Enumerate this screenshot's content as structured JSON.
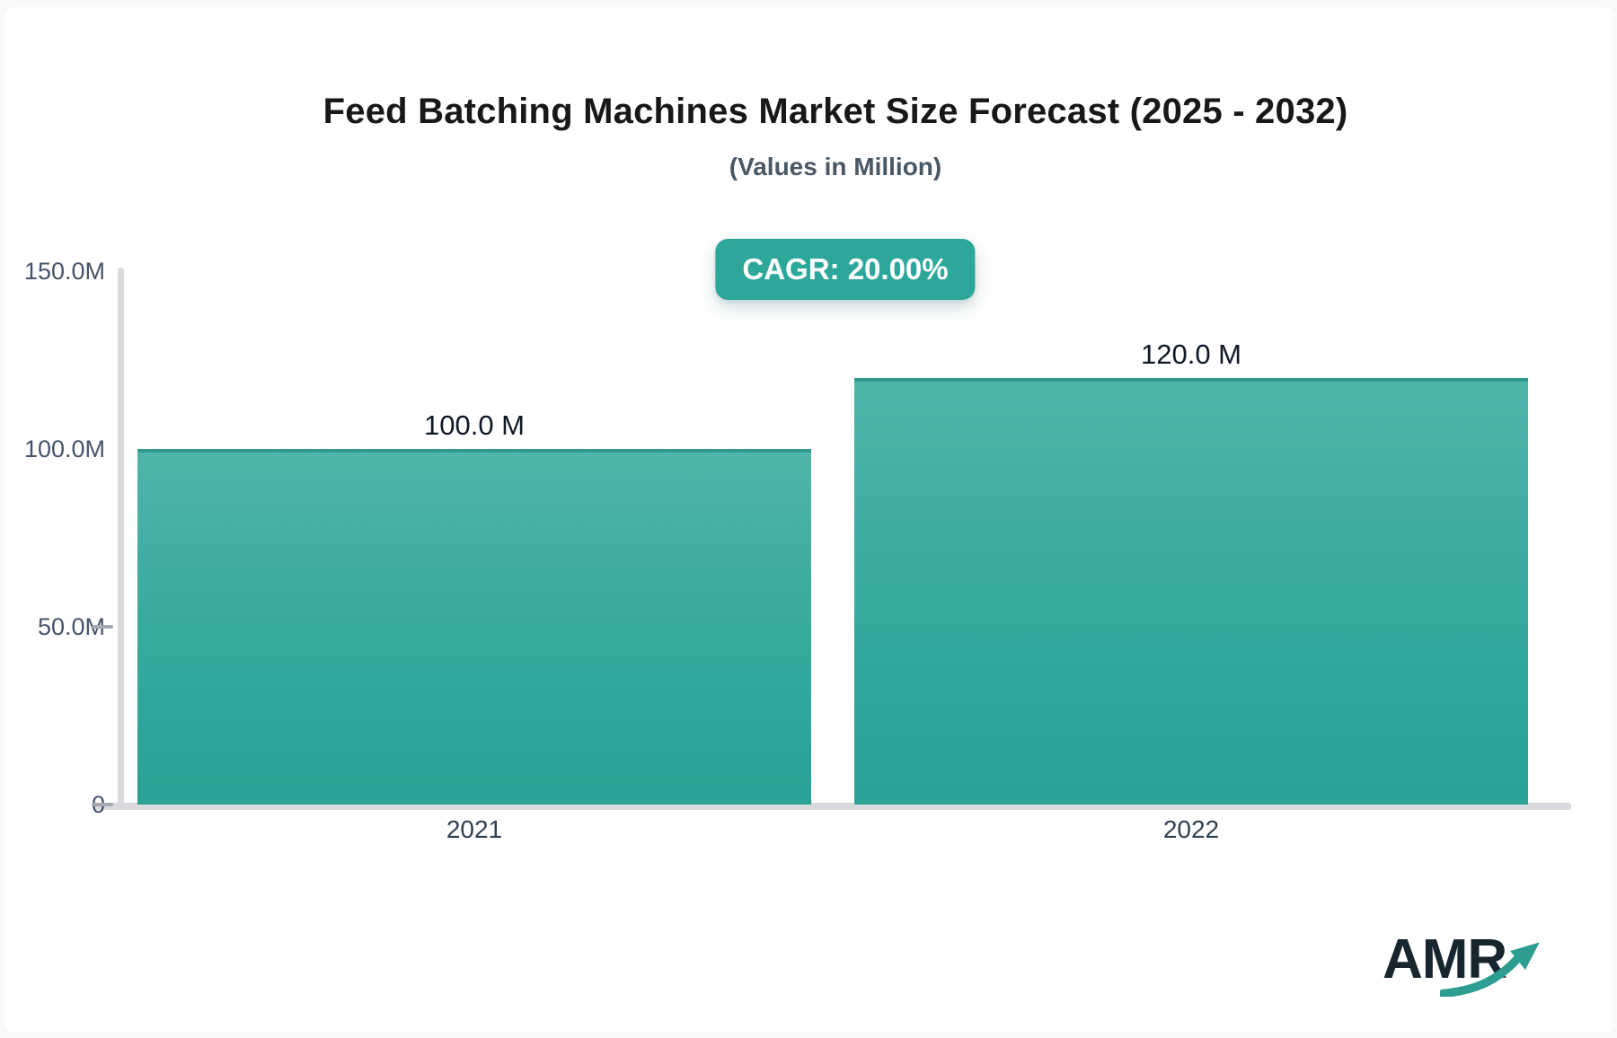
{
  "page": {
    "background_color": "#f8f9fb",
    "card_color": "#ffffff"
  },
  "header": {
    "title": "Feed Batching Machines Market Size Forecast (2025 - 2032)",
    "subtitle": "(Values in Million)",
    "cagr_badge_label": "CAGR: 20.00%",
    "cagr_badge_color": "#2ca79a"
  },
  "chart_data": {
    "type": "bar",
    "title": "Feed Batching Machines Market Size Forecast (2025 - 2032)",
    "subtitle": "(Values in Million)",
    "cagr": "20.00%",
    "categories": [
      "2021",
      "2022"
    ],
    "values": [
      100.0,
      120.0
    ],
    "value_labels": [
      "100.0 M",
      "120.0 M"
    ],
    "unit": "Million",
    "xlabel": "",
    "ylabel": "",
    "ylim": [
      0,
      150
    ],
    "yticks": [
      {
        "value": 0,
        "label": "0",
        "dash": true
      },
      {
        "value": 50,
        "label": "50.0M",
        "dash": true
      },
      {
        "value": 100,
        "label": "100.0M",
        "dash": false
      },
      {
        "value": 150,
        "label": "150.0M",
        "dash": false
      }
    ],
    "grid": false,
    "legend": "none",
    "bar_gradient_top": "#4fb5a9",
    "bar_gradient_bottom": "#2aa295",
    "bar_top_border": "#2f9a8e",
    "axis_color": "#d8dade"
  },
  "branding": {
    "logo_text": "AMR",
    "logo_text_color": "#17262e",
    "logo_arrow_color": "#2d9d92"
  }
}
